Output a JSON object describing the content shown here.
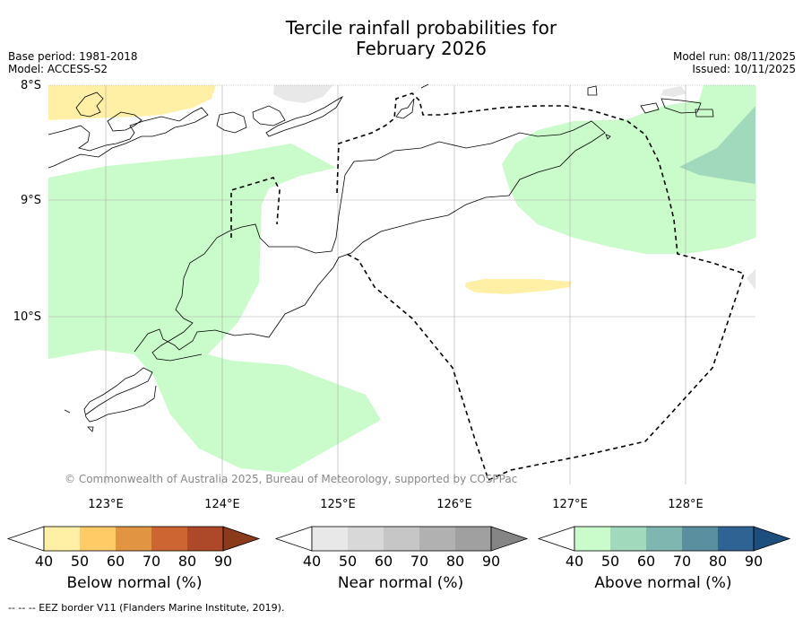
{
  "title_line1": "Tercile rainfall probabilities for",
  "title_line2": "February 2026",
  "base_period": "Base period: 1981-2018",
  "model": "Model: ACCESS-S2",
  "model_run": "Model run: 08/11/2025",
  "issued": "Issued: 10/11/2025",
  "lat_labels": [
    "8°S",
    "9°S",
    "10°S"
  ],
  "lon_labels": [
    "123°E",
    "124°E",
    "125°E",
    "126°E",
    "127°E",
    "128°E"
  ],
  "copyright": "© Commonwealth of Australia 2025, Bureau of Meteorology, supported by COSPPac",
  "colorbars": [
    {
      "name": "below",
      "title": "Below normal (%)",
      "ticks": [
        "40",
        "50",
        "60",
        "70",
        "80",
        "90"
      ],
      "colors": [
        "#fff0a6",
        "#fecb67",
        "#e19542",
        "#cd6532",
        "#ad4929",
        "#8a3b1c"
      ]
    },
    {
      "name": "near",
      "title": "Near normal (%)",
      "ticks": [
        "40",
        "50",
        "60",
        "70",
        "80",
        "90"
      ],
      "colors": [
        "#e8e8e8",
        "#d8d8d8",
        "#c6c6c6",
        "#b1b1b1",
        "#a0a0a0",
        "#858585"
      ]
    },
    {
      "name": "above",
      "title": "Above normal (%)",
      "ticks": [
        "40",
        "50",
        "60",
        "70",
        "80",
        "90"
      ],
      "colors": [
        "#c9fcca",
        "#a1d9bd",
        "#7fb7b0",
        "#5a8f9f",
        "#2f6394",
        "#1d4e7d"
      ]
    }
  ],
  "footer": "--  --  -- EEZ border V11 (Flanders Marine Institute, 2019)."
}
